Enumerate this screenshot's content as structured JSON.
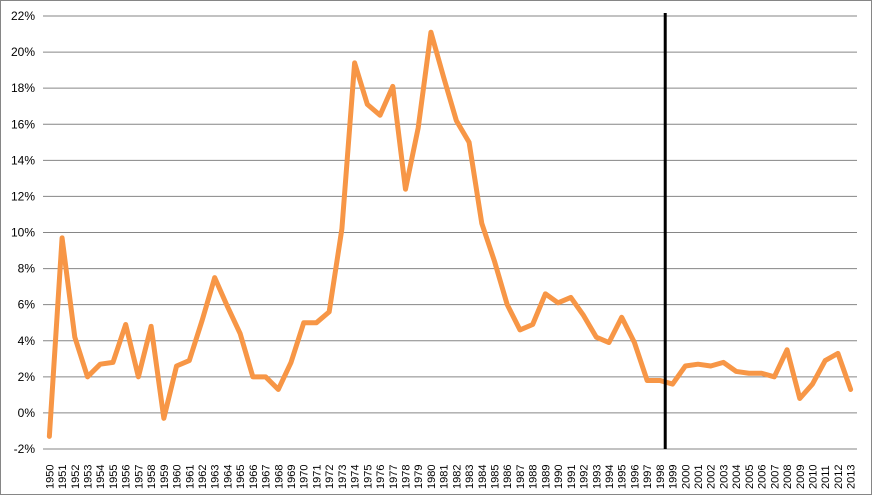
{
  "chart_data": {
    "type": "line",
    "title": "",
    "xlabel": "",
    "ylabel": "",
    "ylim": [
      -2,
      22
    ],
    "yticks": [
      "-2%",
      "0%",
      "2%",
      "4%",
      "6%",
      "8%",
      "10%",
      "12%",
      "14%",
      "16%",
      "18%",
      "20%",
      "22%"
    ],
    "grid": "horizontal",
    "legend": "none",
    "categories": [
      "1950",
      "1951",
      "1952",
      "1953",
      "1954",
      "1955",
      "1956",
      "1957",
      "1958",
      "1959",
      "1960",
      "1961",
      "1962",
      "1963",
      "1964",
      "1965",
      "1966",
      "1967",
      "1968",
      "1969",
      "1970",
      "1971",
      "1972",
      "1973",
      "1974",
      "1975",
      "1976",
      "1977",
      "1978",
      "1979",
      "1980",
      "1981",
      "1982",
      "1983",
      "1984",
      "1985",
      "1986",
      "1987",
      "1988",
      "1989",
      "1990",
      "1991",
      "1992",
      "1993",
      "1994",
      "1995",
      "1996",
      "1997",
      "1998",
      "1999",
      "2000",
      "2001",
      "2002",
      "2003",
      "2004",
      "2005",
      "2006",
      "2007",
      "2008",
      "2009",
      "2010",
      "2011",
      "2012",
      "2013"
    ],
    "series": [
      {
        "values": [
          -1.3,
          9.7,
          4.2,
          2.0,
          2.7,
          2.8,
          4.9,
          2.0,
          4.8,
          -0.3,
          2.6,
          2.9,
          5.1,
          7.5,
          5.9,
          4.4,
          2.0,
          2.0,
          1.3,
          2.8,
          5.0,
          5.0,
          5.6,
          10.2,
          19.4,
          17.1,
          16.5,
          18.1,
          12.4,
          15.8,
          21.1,
          18.6,
          16.2,
          15.0,
          10.5,
          8.4,
          6.0,
          4.6,
          4.9,
          6.6,
          6.1,
          6.4,
          5.4,
          4.2,
          3.9,
          5.3,
          3.9,
          1.8,
          1.8,
          1.6,
          2.6,
          2.7,
          2.6,
          2.8,
          2.3,
          2.2,
          2.2,
          2.0,
          3.5,
          0.8,
          1.6,
          2.9,
          3.3,
          1.3
        ]
      }
    ],
    "colors": {
      "line": "#F79646",
      "grid": "#868686",
      "marker_line": "#000000"
    },
    "vertical_marker": {
      "x": "1999"
    }
  }
}
